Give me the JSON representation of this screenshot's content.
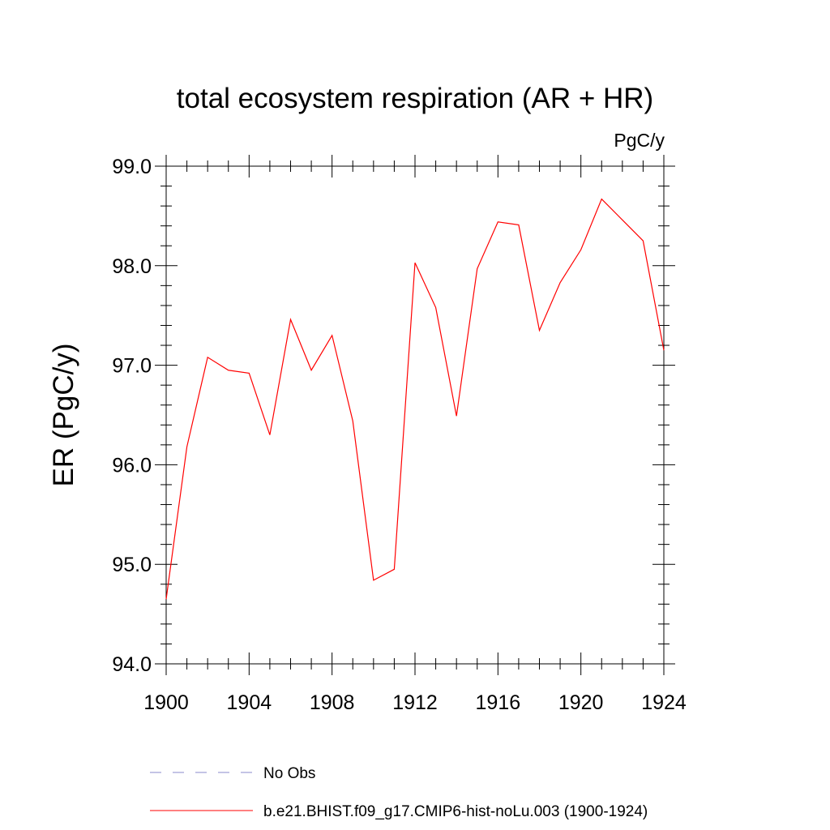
{
  "chart_data": {
    "type": "line",
    "title": "total ecosystem respiration (AR + HR)",
    "units_label": "PgC/y",
    "ylabel": "ER  (PgC/y)",
    "xlim": [
      1900,
      1924
    ],
    "ylim": [
      94.0,
      99.0
    ],
    "xticks": [
      1900,
      1904,
      1908,
      1912,
      1916,
      1920,
      1924
    ],
    "xtick_labels": [
      "1900",
      "1904",
      "1908",
      "1912",
      "1916",
      "1920",
      "1924"
    ],
    "yticks": [
      94.0,
      95.0,
      96.0,
      97.0,
      98.0,
      99.0
    ],
    "ytick_labels": [
      "94.0",
      "95.0",
      "96.0",
      "97.0",
      "98.0",
      "99.0"
    ],
    "grid": false,
    "legend_position": "bottom",
    "x": [
      1900,
      1901,
      1902,
      1903,
      1904,
      1905,
      1906,
      1907,
      1908,
      1909,
      1910,
      1911,
      1912,
      1913,
      1914,
      1915,
      1916,
      1917,
      1918,
      1919,
      1920,
      1921,
      1922,
      1923,
      1924
    ],
    "series": [
      {
        "name": "b.e21.BHIST.f09_g17.CMIP6-hist-noLu.003 (1900-1924)",
        "color": "#ff0000",
        "dash": "solid",
        "values": [
          94.65,
          96.18,
          97.08,
          96.95,
          96.92,
          96.3,
          97.46,
          96.95,
          97.3,
          96.44,
          94.84,
          94.95,
          98.03,
          97.58,
          96.49,
          97.97,
          98.44,
          98.41,
          97.35,
          97.83,
          98.16,
          98.67,
          98.46,
          98.25,
          97.15
        ]
      }
    ],
    "legend": [
      {
        "label": "No Obs",
        "color": "#8888cc",
        "dash": "dashed"
      },
      {
        "label": "b.e21.BHIST.f09_g17.CMIP6-hist-noLu.003 (1900-1924)",
        "color": "#ff0000",
        "dash": "solid"
      }
    ]
  }
}
